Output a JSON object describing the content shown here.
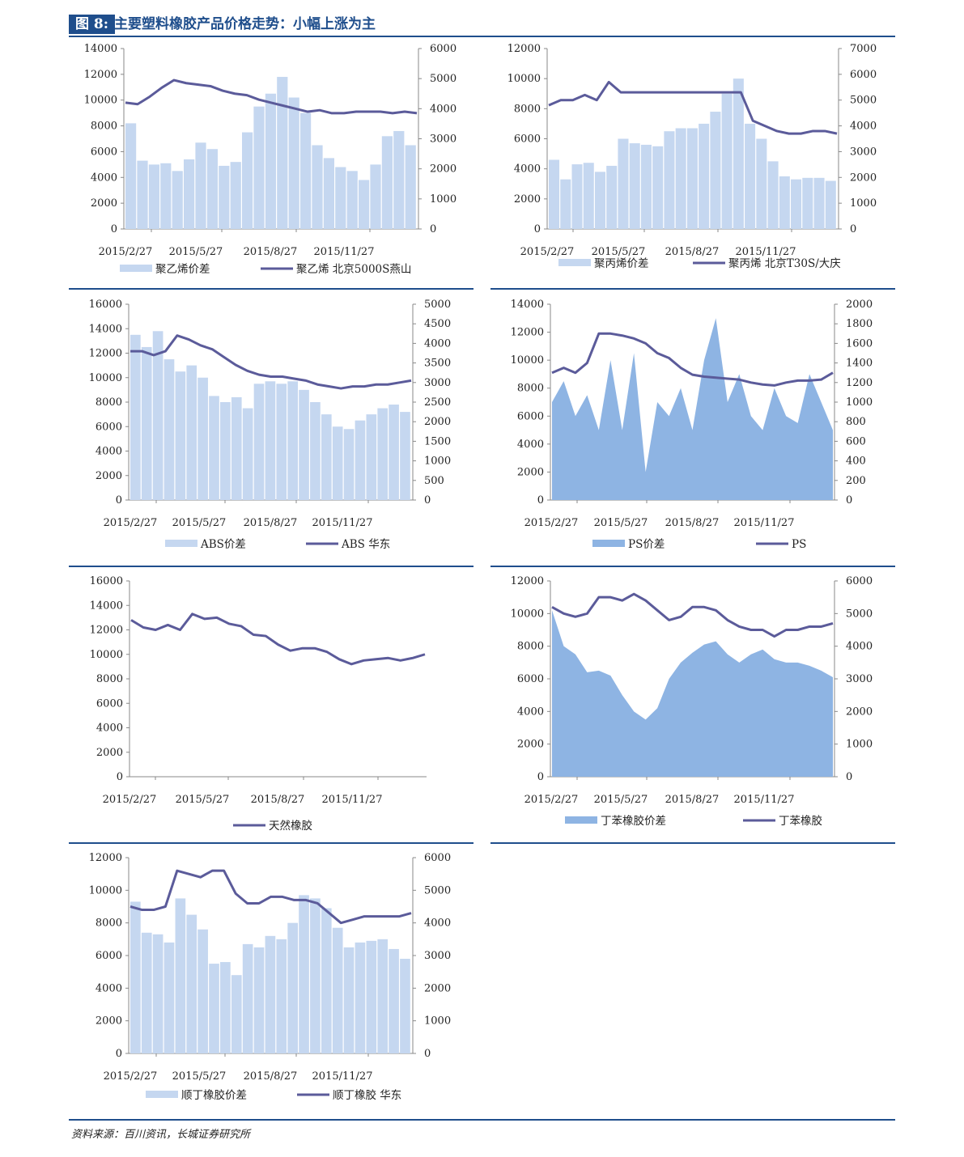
{
  "figure": {
    "tag": "图 8:",
    "title": "主要塑料橡胶产品价格走势：小幅上涨为主",
    "source": "资料来源：百川资讯，长城证券研究所"
  },
  "colors": {
    "line": "#5b5b9a",
    "bar_light": "#c5d7f0",
    "area_mid": "#8eb4e3",
    "accent": "#1f4e8c"
  },
  "chart_data": [
    {
      "id": "pe",
      "type": "bar+line",
      "left_style": "bars",
      "x_labels": [
        "2015/2/27",
        "2015/5/27",
        "2015/8/27",
        "2015/11/27"
      ],
      "y_left": {
        "min": 0,
        "max": 14000,
        "ticks": [
          0,
          2000,
          4000,
          6000,
          8000,
          10000,
          12000,
          14000
        ]
      },
      "y_right": {
        "min": 0,
        "max": 6000,
        "ticks": [
          0,
          1000,
          2000,
          3000,
          4000,
          5000,
          6000
        ]
      },
      "series": [
        {
          "name": "聚乙烯价差",
          "axis": "left",
          "kind": "bar",
          "values": [
            8200,
            5300,
            5000,
            5100,
            4500,
            5400,
            6700,
            6200,
            4900,
            5200,
            7500,
            9500,
            10500,
            11800,
            10200,
            9000,
            6500,
            5500,
            4800,
            4500,
            3800,
            5000,
            7200,
            7600,
            6500
          ]
        },
        {
          "name": "聚乙烯 北京5000S燕山",
          "axis": "right",
          "kind": "line",
          "values": [
            4200,
            4150,
            4400,
            4700,
            4950,
            4850,
            4800,
            4750,
            4600,
            4500,
            4450,
            4300,
            4200,
            4100,
            4000,
            3900,
            3950,
            3850,
            3850,
            3900,
            3900,
            3900,
            3850,
            3900,
            3850
          ]
        }
      ]
    },
    {
      "id": "pp",
      "type": "bar+line",
      "left_style": "bars",
      "x_labels": [
        "2015/2/27",
        "2015/5/27",
        "2015/8/27",
        "2015/11/27"
      ],
      "y_left": {
        "min": 0,
        "max": 12000,
        "ticks": [
          0,
          2000,
          4000,
          6000,
          8000,
          10000,
          12000
        ]
      },
      "y_right": {
        "min": 0,
        "max": 7000,
        "ticks": [
          0,
          1000,
          2000,
          3000,
          4000,
          5000,
          6000,
          7000
        ]
      },
      "series": [
        {
          "name": "聚丙烯价差",
          "axis": "left",
          "kind": "bar",
          "values": [
            4600,
            3300,
            4300,
            4400,
            3800,
            4200,
            6000,
            5700,
            5600,
            5500,
            6500,
            6700,
            6700,
            7000,
            7800,
            9000,
            10000,
            7000,
            6000,
            4500,
            3500,
            3300,
            3400,
            3400,
            3200
          ]
        },
        {
          "name": "聚丙烯 北京T30S/大庆",
          "axis": "right",
          "kind": "line",
          "values": [
            4800,
            5000,
            5000,
            5200,
            5000,
            5700,
            5300,
            5300,
            5300,
            5300,
            5300,
            5300,
            5300,
            5300,
            5300,
            5300,
            5300,
            4200,
            4000,
            3800,
            3700,
            3700,
            3800,
            3800,
            3700
          ]
        }
      ]
    },
    {
      "id": "abs",
      "type": "bar+line",
      "left_style": "bars",
      "x_labels": [
        "2015/2/27",
        "2015/5/27",
        "2015/8/27",
        "2015/11/27"
      ],
      "y_left": {
        "min": 0,
        "max": 16000,
        "ticks": [
          0,
          2000,
          4000,
          6000,
          8000,
          10000,
          12000,
          14000,
          16000
        ]
      },
      "y_right": {
        "min": 0,
        "max": 5000,
        "ticks": [
          0,
          500,
          1000,
          1500,
          2000,
          2500,
          3000,
          3500,
          4000,
          4500,
          5000
        ]
      },
      "series": [
        {
          "name": "ABS价差",
          "axis": "left",
          "kind": "bar",
          "values": [
            13500,
            12500,
            13800,
            11500,
            10500,
            11000,
            10000,
            8500,
            8000,
            8400,
            7500,
            9500,
            9700,
            9500,
            9700,
            9000,
            8000,
            7000,
            6000,
            5800,
            6500,
            7000,
            7500,
            7800,
            7200
          ]
        },
        {
          "name": "ABS 华东",
          "axis": "right",
          "kind": "line",
          "values": [
            3800,
            3800,
            3700,
            3800,
            4200,
            4100,
            3950,
            3850,
            3650,
            3450,
            3300,
            3200,
            3150,
            3150,
            3100,
            3050,
            2950,
            2900,
            2850,
            2900,
            2900,
            2950,
            2950,
            3000,
            3050
          ]
        }
      ]
    },
    {
      "id": "ps",
      "type": "area+line",
      "left_style": "area",
      "x_labels": [
        "2015/2/27",
        "2015/5/27",
        "2015/8/27",
        "2015/11/27"
      ],
      "y_left": {
        "min": 0,
        "max": 14000,
        "ticks": [
          0,
          2000,
          4000,
          6000,
          8000,
          10000,
          12000,
          14000
        ]
      },
      "y_right": {
        "min": 0,
        "max": 2000,
        "ticks": [
          0,
          200,
          400,
          600,
          800,
          1000,
          1200,
          1400,
          1600,
          1800,
          2000
        ]
      },
      "series": [
        {
          "name": "PS价差",
          "axis": "left",
          "kind": "area",
          "values": [
            7000,
            8500,
            6000,
            7500,
            5000,
            10000,
            5000,
            10500,
            2000,
            7000,
            6000,
            8000,
            5000,
            10000,
            13000,
            7000,
            9000,
            6000,
            5000,
            8000,
            6000,
            5500,
            9000,
            7000,
            5000
          ]
        },
        {
          "name": "PS",
          "axis": "right",
          "kind": "line",
          "values": [
            1300,
            1350,
            1300,
            1400,
            1700,
            1700,
            1680,
            1650,
            1600,
            1500,
            1450,
            1350,
            1280,
            1260,
            1250,
            1240,
            1230,
            1200,
            1180,
            1170,
            1200,
            1220,
            1220,
            1230,
            1300
          ]
        }
      ]
    },
    {
      "id": "nr",
      "type": "line",
      "left_style": "none",
      "x_labels": [
        "2015/2/27",
        "2015/5/27",
        "2015/8/27",
        "2015/11/27"
      ],
      "y_left": {
        "min": 0,
        "max": 16000,
        "ticks": [
          0,
          2000,
          4000,
          6000,
          8000,
          10000,
          12000,
          14000,
          16000
        ]
      },
      "series": [
        {
          "name": "天然橡胶",
          "axis": "left",
          "kind": "line",
          "values": [
            12800,
            12200,
            12000,
            12400,
            12000,
            13300,
            12900,
            13000,
            12500,
            12300,
            11600,
            11500,
            10800,
            10300,
            10500,
            10500,
            10200,
            9600,
            9200,
            9500,
            9600,
            9700,
            9500,
            9700,
            10000
          ]
        }
      ]
    },
    {
      "id": "sbr",
      "type": "area+line",
      "left_style": "area",
      "x_labels": [
        "2015/2/27",
        "2015/5/27",
        "2015/8/27",
        "2015/11/27"
      ],
      "y_left": {
        "min": 0,
        "max": 12000,
        "ticks": [
          0,
          2000,
          4000,
          6000,
          8000,
          10000,
          12000
        ]
      },
      "y_right": {
        "min": 0,
        "max": 6000,
        "ticks": [
          0,
          1000,
          2000,
          3000,
          4000,
          5000,
          6000
        ]
      },
      "series": [
        {
          "name": "丁苯橡胶价差",
          "axis": "left",
          "kind": "area",
          "values": [
            10200,
            8000,
            7500,
            6400,
            6500,
            6200,
            5000,
            4000,
            3500,
            4200,
            6000,
            7000,
            7600,
            8100,
            8300,
            7500,
            7000,
            7500,
            7800,
            7200,
            7000,
            7000,
            6800,
            6500,
            6100
          ]
        },
        {
          "name": "丁苯橡胶",
          "axis": "right",
          "kind": "line",
          "values": [
            5200,
            5000,
            4900,
            5000,
            5500,
            5500,
            5400,
            5600,
            5400,
            5100,
            4800,
            4900,
            5200,
            5200,
            5100,
            4800,
            4600,
            4500,
            4500,
            4300,
            4500,
            4500,
            4600,
            4600,
            4700
          ]
        }
      ]
    },
    {
      "id": "br",
      "type": "bar+line",
      "left_style": "bars",
      "x_labels": [
        "2015/2/27",
        "2015/5/27",
        "2015/8/27",
        "2015/11/27"
      ],
      "y_left": {
        "min": 0,
        "max": 12000,
        "ticks": [
          0,
          2000,
          4000,
          6000,
          8000,
          10000,
          12000
        ]
      },
      "y_right": {
        "min": 0,
        "max": 6000,
        "ticks": [
          0,
          1000,
          2000,
          3000,
          4000,
          5000,
          6000
        ]
      },
      "series": [
        {
          "name": "顺丁橡胶价差",
          "axis": "left",
          "kind": "bar",
          "values": [
            9300,
            7400,
            7300,
            6800,
            9500,
            8500,
            7600,
            5500,
            5600,
            4800,
            6700,
            6500,
            7200,
            7000,
            8000,
            9700,
            9500,
            8900,
            7700,
            6500,
            6800,
            6900,
            7000,
            6400,
            5800
          ]
        },
        {
          "name": "顺丁橡胶 华东",
          "axis": "right",
          "kind": "line",
          "values": [
            4500,
            4400,
            4400,
            4500,
            5600,
            5500,
            5400,
            5600,
            5600,
            4900,
            4600,
            4600,
            4800,
            4800,
            4700,
            4700,
            4600,
            4300,
            4000,
            4100,
            4200,
            4200,
            4200,
            4200,
            4300
          ]
        }
      ]
    }
  ]
}
